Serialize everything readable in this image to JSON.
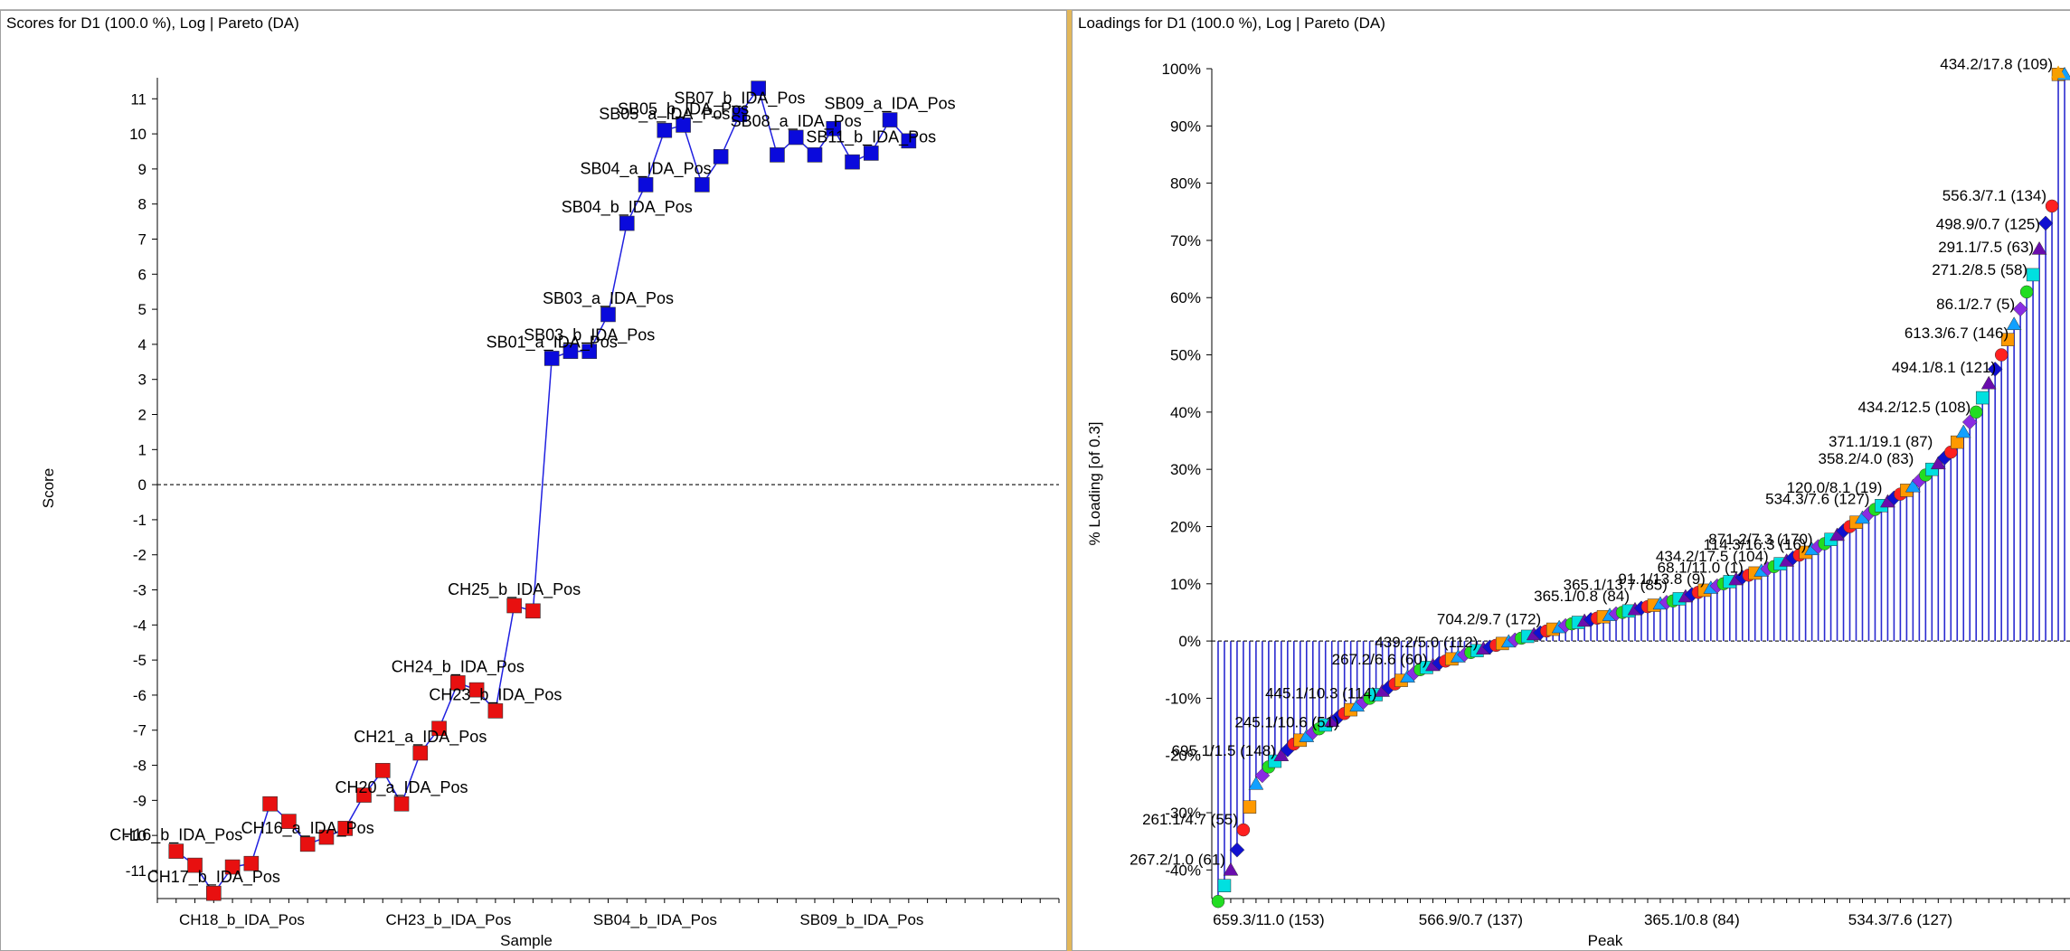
{
  "panels": {
    "scores": {
      "title": "Scores for D1 (100.0 %), Log | Pareto (DA)"
    },
    "loadings": {
      "title": "Loadings for D1 (100.0 %), Log | Pareto (DA)"
    }
  },
  "chart_data": [
    {
      "type": "line",
      "title": "Scores for D1 (100.0 %), Log | Pareto (DA)",
      "xlabel": "Sample",
      "ylabel": "Score",
      "ylim": [
        -11.8,
        11.6
      ],
      "yticks": [
        11,
        10,
        9,
        8,
        7,
        6,
        5,
        4,
        3,
        2,
        1,
        0,
        -1,
        -2,
        -3,
        -4,
        -5,
        -6,
        -7,
        -8,
        -9,
        -10,
        -11
      ],
      "xtick_labels": [
        "CH18_b_IDA_Pos",
        "CH23_b_IDA_Pos",
        "SB04_b_IDA_Pos",
        "SB09_b_IDA_Pos"
      ],
      "xtick_positions": [
        3.5,
        14.5,
        25.5,
        36.5
      ],
      "xlim": [
        -1,
        47
      ],
      "zero_line": true,
      "colors": {
        "line": "#2020e0",
        "positive": "#0a0adc",
        "negative": "#e81010"
      },
      "points": [
        {
          "x": 0,
          "y": -10.45
        },
        {
          "x": 1,
          "y": -10.85
        },
        {
          "x": 2,
          "y": -11.65
        },
        {
          "x": 3,
          "y": -10.9
        },
        {
          "x": 4,
          "y": -10.8
        },
        {
          "x": 5,
          "y": -9.1
        },
        {
          "x": 6,
          "y": -9.6
        },
        {
          "x": 7,
          "y": -10.25
        },
        {
          "x": 8,
          "y": -10.05
        },
        {
          "x": 9,
          "y": -9.8
        },
        {
          "x": 10,
          "y": -8.85
        },
        {
          "x": 11,
          "y": -8.15
        },
        {
          "x": 12,
          "y": -9.1
        },
        {
          "x": 13,
          "y": -7.65
        },
        {
          "x": 14,
          "y": -6.95
        },
        {
          "x": 15,
          "y": -5.65
        },
        {
          "x": 16,
          "y": -5.85
        },
        {
          "x": 17,
          "y": -6.45
        },
        {
          "x": 18,
          "y": -3.45
        },
        {
          "x": 19,
          "y": -3.6
        },
        {
          "x": 20,
          "y": 3.6
        },
        {
          "x": 21,
          "y": 3.8
        },
        {
          "x": 22,
          "y": 3.8
        },
        {
          "x": 23,
          "y": 4.85
        },
        {
          "x": 24,
          "y": 7.45
        },
        {
          "x": 25,
          "y": 8.55
        },
        {
          "x": 26,
          "y": 10.1
        },
        {
          "x": 27,
          "y": 10.25
        },
        {
          "x": 28,
          "y": 8.55
        },
        {
          "x": 29,
          "y": 9.35
        },
        {
          "x": 30,
          "y": 10.55
        },
        {
          "x": 31,
          "y": 11.3
        },
        {
          "x": 32,
          "y": 9.4
        },
        {
          "x": 33,
          "y": 9.9
        },
        {
          "x": 34,
          "y": 9.4
        },
        {
          "x": 35,
          "y": 10.15
        },
        {
          "x": 36,
          "y": 9.2
        },
        {
          "x": 37,
          "y": 9.45
        },
        {
          "x": 38,
          "y": 10.4
        },
        {
          "x": 39,
          "y": 9.8
        }
      ],
      "labels": [
        {
          "text": "SB05_a_IDA_Pos",
          "x": 26,
          "y": 10.1
        },
        {
          "text": "SB07_b_IDA_Pos",
          "x": 30,
          "y": 10.55
        },
        {
          "text": "SB09_a_IDA_Pos",
          "x": 38,
          "y": 10.4
        },
        {
          "text": "SB05_b_IDA_Pos",
          "x": 27,
          "y": 10.25
        },
        {
          "text": "SB11_b_IDA_Pos",
          "x": 37,
          "y": 9.45
        },
        {
          "text": "SB08_a_IDA_Pos",
          "x": 33,
          "y": 9.9
        },
        {
          "text": "SB04_a_IDA_Pos",
          "x": 25,
          "y": 8.55
        },
        {
          "text": "SB04_b_IDA_Pos",
          "x": 24,
          "y": 7.45
        },
        {
          "text": "SB03_a_IDA_Pos",
          "x": 23,
          "y": 4.85
        },
        {
          "text": "SB03_b_IDA_Pos",
          "x": 22,
          "y": 3.8
        },
        {
          "text": "SB01_a_IDA_Pos",
          "x": 20,
          "y": 3.6
        },
        {
          "text": "CH25_b_IDA_Pos",
          "x": 18,
          "y": -3.45
        },
        {
          "text": "CH24_b_IDA_Pos",
          "x": 15,
          "y": -5.65
        },
        {
          "text": "CH23_b_IDA_Pos",
          "x": 17,
          "y": -6.45
        },
        {
          "text": "CH21_a_IDA_Pos",
          "x": 13,
          "y": -7.65
        },
        {
          "text": "CH16_b_IDA_Pos",
          "x": 0,
          "y": -10.45
        },
        {
          "text": "CH20_a_IDA_Pos",
          "x": 12,
          "y": -9.1
        },
        {
          "text": "CH16_a_IDA_Pos",
          "x": 7,
          "y": -10.25
        },
        {
          "text": "CH17_b_IDA_Pos",
          "x": 2,
          "y": -11.65
        }
      ]
    },
    {
      "type": "bar",
      "title": "Loadings for D1 (100.0 %), Log | Pareto (DA)",
      "xlabel": "Peak",
      "ylabel": "% Loading [of 0.3]",
      "ylim": [
        -45,
        100
      ],
      "yticks": [
        100,
        90,
        80,
        70,
        60,
        50,
        40,
        30,
        20,
        10,
        0,
        -10,
        -20,
        -30,
        -40
      ],
      "ytick_suffix": "%",
      "xtick_labels": [
        "659.3/11.0 (153)",
        "566.9/0.7 (137)",
        "365.1/0.8 (84)",
        "534.3/7.6 (127)"
      ],
      "xtick_positions": [
        8,
        40,
        75,
        108
      ],
      "n_peaks": 135,
      "xlim": [
        -1,
        135
      ],
      "zero_line": true,
      "colors": {
        "stem": "#2a2ad0",
        "top_marker": "#f5a000"
      },
      "curve_samples": [
        {
          "i": 0,
          "v": -45.5
        },
        {
          "i": 2,
          "v": -40
        },
        {
          "i": 4,
          "v": -33
        },
        {
          "i": 6,
          "v": -25
        },
        {
          "i": 8,
          "v": -22
        },
        {
          "i": 12,
          "v": -18
        },
        {
          "i": 18,
          "v": -14
        },
        {
          "i": 24,
          "v": -10
        },
        {
          "i": 32,
          "v": -5
        },
        {
          "i": 40,
          "v": -2
        },
        {
          "i": 48,
          "v": 0.5
        },
        {
          "i": 56,
          "v": 3
        },
        {
          "i": 64,
          "v": 5
        },
        {
          "i": 72,
          "v": 7
        },
        {
          "i": 80,
          "v": 10
        },
        {
          "i": 88,
          "v": 13
        },
        {
          "i": 96,
          "v": 17
        },
        {
          "i": 104,
          "v": 23
        },
        {
          "i": 110,
          "v": 27
        },
        {
          "i": 116,
          "v": 33
        },
        {
          "i": 120,
          "v": 40
        },
        {
          "i": 124,
          "v": 50
        },
        {
          "i": 127,
          "v": 58
        },
        {
          "i": 129,
          "v": 64
        },
        {
          "i": 131,
          "v": 73
        },
        {
          "i": 132,
          "v": 76
        },
        {
          "i": 133,
          "v": 99
        }
      ],
      "labels": [
        {
          "text": "434.2/17.8 (109)",
          "i": 133,
          "v": 99
        },
        {
          "text": "556.3/7.1 (134)",
          "i": 132,
          "v": 76
        },
        {
          "text": "498.9/0.7 (125)",
          "i": 131,
          "v": 71
        },
        {
          "text": "291.1/7.5 (63)",
          "i": 130,
          "v": 67
        },
        {
          "text": "271.2/8.5 (58)",
          "i": 129,
          "v": 63
        },
        {
          "text": "86.1/2.7 (5)",
          "i": 127,
          "v": 57
        },
        {
          "text": "613.3/6.7 (146)",
          "i": 126,
          "v": 52
        },
        {
          "text": "494.1/8.1 (121)",
          "i": 124,
          "v": 46
        },
        {
          "text": "434.2/12.5 (108)",
          "i": 120,
          "v": 39
        },
        {
          "text": "371.1/19.1 (87)",
          "i": 114,
          "v": 33
        },
        {
          "text": "358.2/4.0 (83)",
          "i": 111,
          "v": 30
        },
        {
          "text": "120.0/8.1 (19)",
          "i": 106,
          "v": 25
        },
        {
          "text": "534.3/7.6 (127)",
          "i": 104,
          "v": 23
        },
        {
          "text": "871.2/7.3 (170)",
          "i": 95,
          "v": 16
        },
        {
          "text": "114.3/16.3 (16)",
          "i": 94,
          "v": 15
        },
        {
          "text": "434.2/17.5 (104)",
          "i": 88,
          "v": 13
        },
        {
          "text": "365.1/13.7 (85)",
          "i": 72,
          "v": 8
        },
        {
          "text": "91.1/13.8 (9)",
          "i": 78,
          "v": 9
        },
        {
          "text": "68.1/11.0 (1)",
          "i": 84,
          "v": 11
        },
        {
          "text": "365.1/0.8 (84)",
          "i": 66,
          "v": 6
        },
        {
          "text": "704.2/9.7 (172)",
          "i": 52,
          "v": 2
        },
        {
          "text": "439.2/5.0 (112)",
          "i": 42,
          "v": -2
        },
        {
          "text": "267.2/6.6 (60)",
          "i": 34,
          "v": -5
        },
        {
          "text": "445.1/10.3 (114)",
          "i": 26,
          "v": -11
        },
        {
          "text": "245.1/10.6 (51)",
          "i": 20,
          "v": -16
        },
        {
          "text": "695.1/1.5 (148)",
          "i": 10,
          "v": -21
        },
        {
          "text": "261.1/4.7 (55)",
          "i": 4,
          "v": -33
        },
        {
          "text": "267.2/1.0 (61)",
          "i": 2,
          "v": -40
        }
      ]
    }
  ]
}
